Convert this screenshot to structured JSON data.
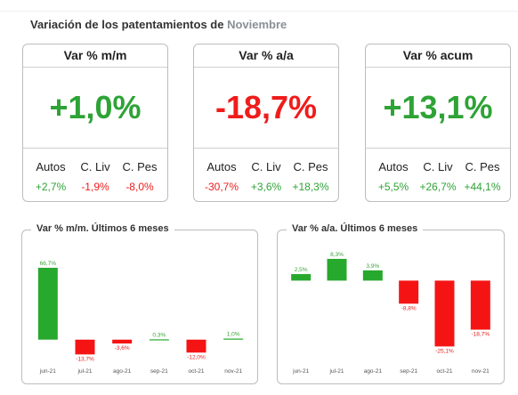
{
  "header": {
    "title": "Variación de los patentamientos de",
    "month": "Noviembre"
  },
  "kpis": [
    {
      "title": "Var % m/m",
      "value": "+1,0%",
      "status": "pos",
      "labels": [
        "Autos",
        "C. Liv",
        "C. Pes"
      ],
      "values": [
        "+2,7%",
        "-1,9%",
        "-8,0%"
      ],
      "value_status": [
        "pos",
        "neg",
        "neg"
      ]
    },
    {
      "title": "Var % a/a",
      "value": "-18,7%",
      "status": "neg",
      "labels": [
        "Autos",
        "C. Liv",
        "C. Pes"
      ],
      "values": [
        "-30,7%",
        "+3,6%",
        "+18,3%"
      ],
      "value_status": [
        "neg",
        "pos",
        "pos"
      ]
    },
    {
      "title": "Var % acum",
      "value": "+13,1%",
      "status": "pos",
      "labels": [
        "Autos",
        "C. Liv",
        "C. Pes"
      ],
      "values": [
        "+5,5%",
        "+26,7%",
        "+44,1%"
      ],
      "value_status": [
        "pos",
        "pos",
        "pos"
      ]
    }
  ],
  "colors": {
    "positive": "#27a92e",
    "negative": "#f51414"
  },
  "chart_data": [
    {
      "type": "bar",
      "title": "Var % m/m. Últimos 6 meses",
      "categories": [
        "jun-21",
        "jul-21",
        "ago-21",
        "sep-21",
        "oct-21",
        "nov-21"
      ],
      "values": [
        66.7,
        -13.7,
        -3.6,
        0.3,
        -12.0,
        1.0
      ],
      "value_labels": [
        "66,7%",
        "-13,7%",
        "-3,6%",
        "0,3%",
        "-12,0%",
        "1,0%"
      ],
      "ylim": [
        -20,
        70
      ]
    },
    {
      "type": "bar",
      "title": "Var % a/a. Últimos 6 meses",
      "categories": [
        "jun-21",
        "jul-21",
        "ago-21",
        "sep-21",
        "oct-21",
        "nov-21"
      ],
      "values": [
        2.5,
        8.3,
        3.9,
        -8.8,
        -25.1,
        -18.7
      ],
      "value_labels": [
        "2,5%",
        "8,3%",
        "3,9%",
        "-8,8%",
        "-25,1%",
        "-18,7%"
      ],
      "ylim": [
        -27,
        11
      ]
    }
  ]
}
